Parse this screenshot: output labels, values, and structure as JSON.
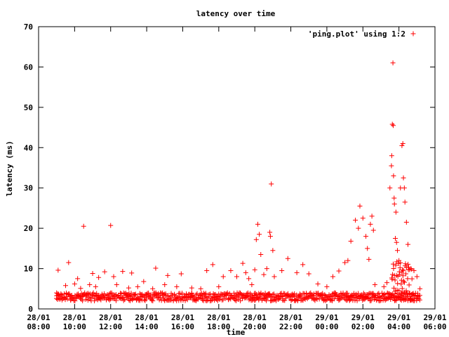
{
  "chart_data": {
    "type": "scatter",
    "title": "latency over time",
    "xlabel": "time",
    "ylabel": "latency (ms)",
    "xlim": [
      "28/01 08:00",
      "29/01 06:00"
    ],
    "ylim": [
      0,
      70
    ],
    "grid": false,
    "legend_position": "top-right",
    "marker_color": "#ff0000",
    "x_ticks": [
      {
        "value": "28/01 08:00",
        "line1": "28/01",
        "line2": "08:00"
      },
      {
        "value": "28/01 10:00",
        "line1": "28/01",
        "line2": "10:00"
      },
      {
        "value": "28/01 12:00",
        "line1": "28/01",
        "line2": "12:00"
      },
      {
        "value": "28/01 14:00",
        "line1": "28/01",
        "line2": "14:00"
      },
      {
        "value": "28/01 16:00",
        "line1": "28/01",
        "line2": "16:00"
      },
      {
        "value": "28/01 18:00",
        "line1": "28/01",
        "line2": "18:00"
      },
      {
        "value": "28/01 20:00",
        "line1": "28/01",
        "line2": "20:00"
      },
      {
        "value": "28/01 22:00",
        "line1": "28/01",
        "line2": "22:00"
      },
      {
        "value": "29/01 00:00",
        "line1": "29/01",
        "line2": "00:00"
      },
      {
        "value": "29/01 02:00",
        "line1": "29/01",
        "line2": "02:00"
      },
      {
        "value": "29/01 04:00",
        "line1": "29/01",
        "line2": "04:00"
      },
      {
        "value": "29/01 06:00",
        "line1": "29/01",
        "line2": "06:00"
      }
    ],
    "y_ticks": [
      "0",
      "10",
      "20",
      "30",
      "40",
      "50",
      "60",
      "70"
    ],
    "series": [
      {
        "name": "'ping.plot' using 1:2",
        "points": [
          [
            "28/01 09:00",
            2.6
          ],
          [
            "28/01 09:05",
            9.6
          ],
          [
            "28/01 09:30",
            5.8
          ],
          [
            "28/01 09:40",
            11.5
          ],
          [
            "28/01 10:00",
            6.2
          ],
          [
            "28/01 10:10",
            7.5
          ],
          [
            "28/01 10:20",
            5.1
          ],
          [
            "28/01 10:30",
            20.5
          ],
          [
            "28/01 10:50",
            6.0
          ],
          [
            "28/01 11:00",
            8.8
          ],
          [
            "28/01 11:10",
            5.5
          ],
          [
            "28/01 11:20",
            7.8
          ],
          [
            "28/01 11:40",
            9.2
          ],
          [
            "28/01 12:00",
            20.7
          ],
          [
            "28/01 12:10",
            8.0
          ],
          [
            "28/01 12:20",
            6.0
          ],
          [
            "28/01 12:40",
            9.3
          ],
          [
            "28/01 13:00",
            5.2
          ],
          [
            "28/01 13:10",
            8.9
          ],
          [
            "28/01 13:30",
            5.5
          ],
          [
            "28/01 13:50",
            6.8
          ],
          [
            "28/01 14:20",
            5.0
          ],
          [
            "28/01 14:30",
            10.1
          ],
          [
            "28/01 15:00",
            6.0
          ],
          [
            "28/01 15:10",
            8.3
          ],
          [
            "28/01 15:40",
            5.5
          ],
          [
            "28/01 15:55",
            8.7
          ],
          [
            "28/01 16:30",
            5.2
          ],
          [
            "28/01 17:00",
            5.0
          ],
          [
            "28/01 17:20",
            9.5
          ],
          [
            "28/01 17:40",
            11.0
          ],
          [
            "28/01 18:00",
            5.5
          ],
          [
            "28/01 18:15",
            8.0
          ],
          [
            "28/01 18:40",
            9.5
          ],
          [
            "28/01 19:00",
            8.0
          ],
          [
            "28/01 19:20",
            11.3
          ],
          [
            "28/01 19:30",
            9.0
          ],
          [
            "28/01 19:40",
            7.5
          ],
          [
            "28/01 19:50",
            6.0
          ],
          [
            "28/01 20:00",
            9.7
          ],
          [
            "28/01 20:05",
            17.2
          ],
          [
            "28/01 20:10",
            21.0
          ],
          [
            "28/01 20:15",
            18.5
          ],
          [
            "28/01 20:20",
            13.5
          ],
          [
            "28/01 20:30",
            8.5
          ],
          [
            "28/01 20:40",
            10.0
          ],
          [
            "28/01 20:50",
            19.0
          ],
          [
            "28/01 20:52",
            18.0
          ],
          [
            "28/01 20:55",
            31.0
          ],
          [
            "28/01 21:00",
            14.5
          ],
          [
            "28/01 21:05",
            8.0
          ],
          [
            "28/01 21:30",
            9.5
          ],
          [
            "28/01 21:50",
            12.5
          ],
          [
            "28/01 22:20",
            9.0
          ],
          [
            "28/01 22:40",
            11.0
          ],
          [
            "28/01 23:00",
            8.7
          ],
          [
            "28/01 23:30",
            6.2
          ],
          [
            "29/01 00:00",
            5.5
          ],
          [
            "29/01 00:20",
            8.0
          ],
          [
            "29/01 00:40",
            9.4
          ],
          [
            "29/01 01:00",
            11.5
          ],
          [
            "29/01 01:10",
            12.0
          ],
          [
            "29/01 01:20",
            16.8
          ],
          [
            "29/01 01:35",
            22.0
          ],
          [
            "29/01 01:45",
            20.0
          ],
          [
            "29/01 01:50",
            25.5
          ],
          [
            "29/01 02:00",
            22.5
          ],
          [
            "29/01 02:10",
            18.0
          ],
          [
            "29/01 02:15",
            15.0
          ],
          [
            "29/01 02:20",
            12.3
          ],
          [
            "29/01 02:25",
            21.0
          ],
          [
            "29/01 02:30",
            23.0
          ],
          [
            "29/01 02:35",
            19.5
          ],
          [
            "29/01 02:40",
            6.0
          ],
          [
            "29/01 03:10",
            5.5
          ],
          [
            "29/01 03:20",
            6.5
          ],
          [
            "29/01 03:30",
            30.0
          ],
          [
            "29/01 03:35",
            35.5
          ],
          [
            "29/01 03:36",
            38.0
          ],
          [
            "29/01 03:38",
            45.8
          ],
          [
            "29/01 03:40",
            61.0
          ],
          [
            "29/01 03:41",
            45.5
          ],
          [
            "29/01 03:42",
            33.0
          ],
          [
            "29/01 03:44",
            27.5
          ],
          [
            "29/01 03:45",
            26.0
          ],
          [
            "29/01 03:48",
            17.5
          ],
          [
            "29/01 03:50",
            24.0
          ],
          [
            "29/01 03:52",
            16.5
          ],
          [
            "29/01 03:55",
            14.5
          ],
          [
            "29/01 04:00",
            12.0
          ],
          [
            "29/01 04:05",
            30.0
          ],
          [
            "29/01 04:10",
            40.5
          ],
          [
            "29/01 04:13",
            41.0
          ],
          [
            "29/01 04:15",
            32.5
          ],
          [
            "29/01 04:18",
            30.0
          ],
          [
            "29/01 04:20",
            26.5
          ],
          [
            "29/01 04:25",
            21.5
          ],
          [
            "29/01 04:30",
            16.0
          ],
          [
            "29/01 04:40",
            10.0
          ],
          [
            "29/01 04:50",
            9.5
          ],
          [
            "29/01 05:00",
            8.0
          ],
          [
            "29/01 05:10",
            5.0
          ]
        ],
        "baseline_band": {
          "x_start": "28/01 09:00",
          "x_end": "29/01 05:10",
          "y_min": 2.0,
          "y_max": 4.0
        }
      }
    ]
  }
}
